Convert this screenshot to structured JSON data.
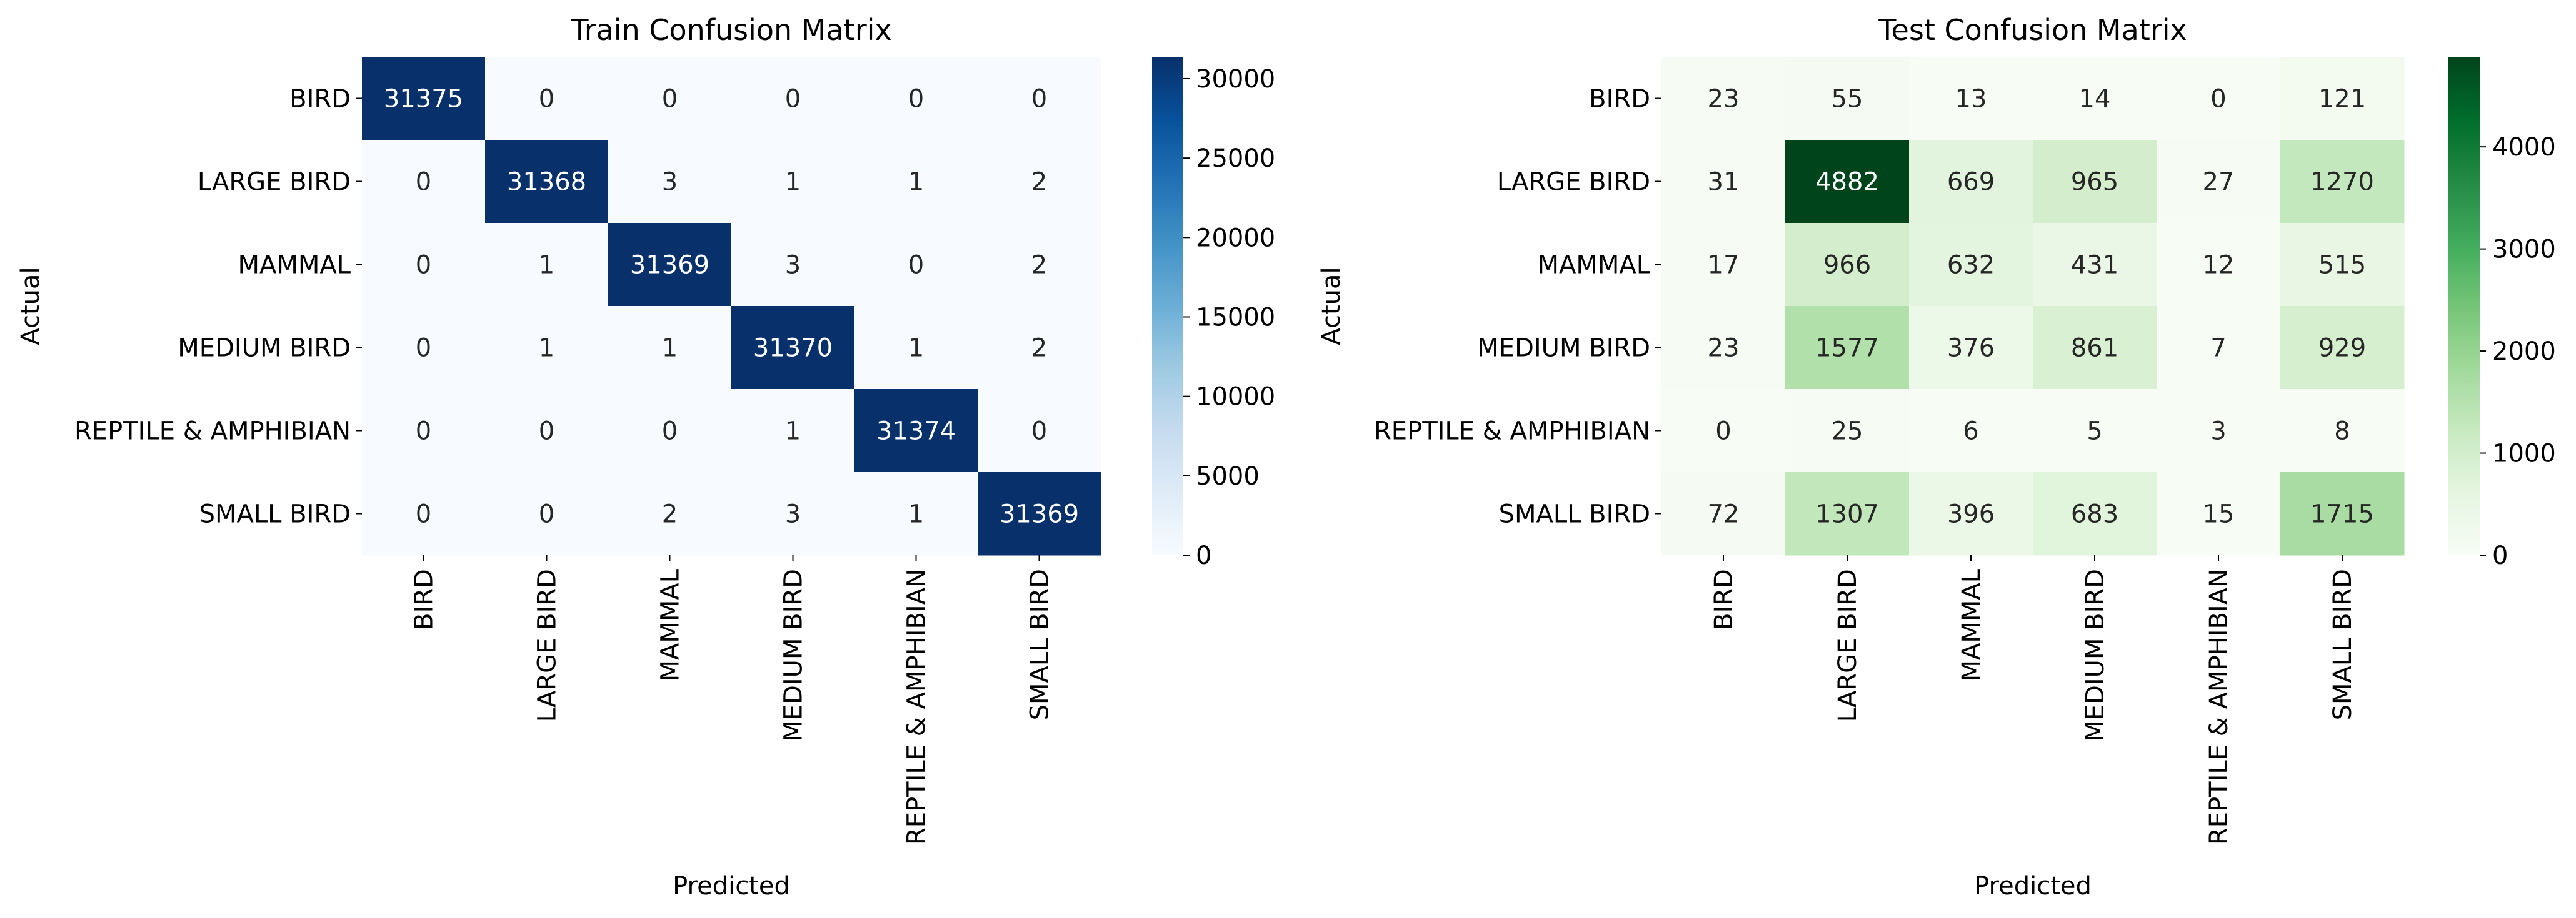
{
  "chart_data": [
    {
      "type": "heatmap",
      "title": "Train Confusion Matrix",
      "xlabel": "Predicted",
      "ylabel": "Actual",
      "colormap": "Blues",
      "rows": [
        "BIRD",
        "LARGE BIRD",
        "MAMMAL",
        "MEDIUM BIRD",
        "REPTILE & AMPHIBIAN",
        "SMALL BIRD"
      ],
      "cols": [
        "BIRD",
        "LARGE BIRD",
        "MAMMAL",
        "MEDIUM BIRD",
        "REPTILE & AMPHIBIAN",
        "SMALL BIRD"
      ],
      "values": [
        [
          31375,
          0,
          0,
          0,
          0,
          0
        ],
        [
          0,
          31368,
          3,
          1,
          1,
          2
        ],
        [
          0,
          1,
          31369,
          3,
          0,
          2
        ],
        [
          0,
          1,
          1,
          31370,
          1,
          2
        ],
        [
          0,
          0,
          0,
          1,
          31374,
          0
        ],
        [
          0,
          0,
          2,
          3,
          1,
          31369
        ]
      ],
      "colorbar": {
        "ticks": [
          0,
          5000,
          10000,
          15000,
          20000,
          25000,
          30000
        ],
        "range": [
          0,
          31375
        ]
      }
    },
    {
      "type": "heatmap",
      "title": "Test Confusion Matrix",
      "xlabel": "Predicted",
      "ylabel": "Actual",
      "colormap": "Greens",
      "rows": [
        "BIRD",
        "LARGE BIRD",
        "MAMMAL",
        "MEDIUM BIRD",
        "REPTILE & AMPHIBIAN",
        "SMALL BIRD"
      ],
      "cols": [
        "BIRD",
        "LARGE BIRD",
        "MAMMAL",
        "MEDIUM BIRD",
        "REPTILE & AMPHIBIAN",
        "SMALL BIRD"
      ],
      "values": [
        [
          23,
          55,
          13,
          14,
          0,
          121
        ],
        [
          31,
          4882,
          669,
          965,
          27,
          1270
        ],
        [
          17,
          966,
          632,
          431,
          12,
          515
        ],
        [
          23,
          1577,
          376,
          861,
          7,
          929
        ],
        [
          0,
          25,
          6,
          5,
          3,
          8
        ],
        [
          72,
          1307,
          396,
          683,
          15,
          1715
        ]
      ],
      "colorbar": {
        "ticks": [
          0,
          1000,
          2000,
          3000,
          4000
        ],
        "range": [
          0,
          4882
        ]
      }
    }
  ]
}
